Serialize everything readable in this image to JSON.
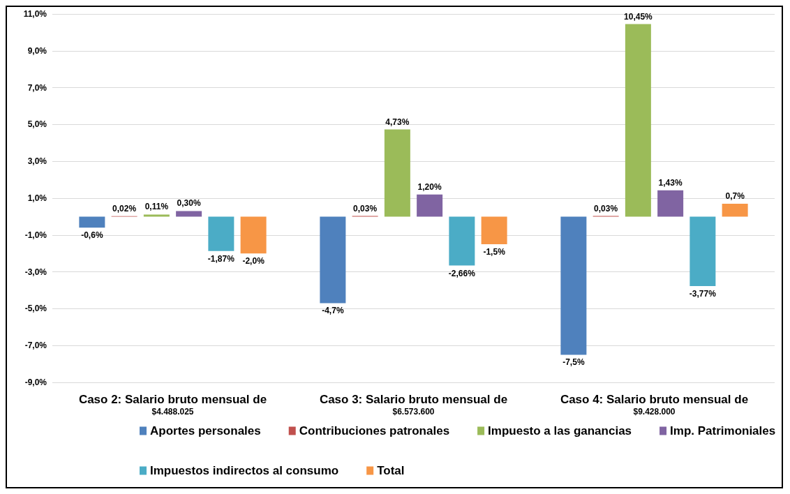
{
  "chart_data": {
    "type": "bar",
    "categories": [
      "Caso 2: Salario bruto mensual de\n$4.488.025",
      "Caso 3: Salario bruto mensual de\n$6.573.600",
      "Caso 4: Salario bruto mensual de\n$9.428.000"
    ],
    "series": [
      {
        "name": "Aportes personales",
        "color": "#4f81bd",
        "values": [
          -0.6,
          -4.7,
          -7.5
        ],
        "value_labels": [
          "-0,6%",
          "-4,7%",
          "-7,5%"
        ]
      },
      {
        "name": "Contribuciones patronales",
        "color": "#c0504d",
        "values": [
          0.02,
          0.03,
          0.03
        ],
        "value_labels": [
          "0,02%",
          "0,03%",
          "0,03%"
        ]
      },
      {
        "name": "Impuesto a las ganancias",
        "color": "#9bbb59",
        "values": [
          0.11,
          4.73,
          10.45
        ],
        "value_labels": [
          "0,11%",
          "4,73%",
          "10,45%"
        ]
      },
      {
        "name": "Imp. Patrimoniales",
        "color": "#8064a2",
        "values": [
          0.3,
          1.2,
          1.43
        ],
        "value_labels": [
          "0,30%",
          "1,20%",
          "1,43%"
        ]
      },
      {
        "name": "Impuestos indirectos al consumo",
        "color": "#4bacc6",
        "values": [
          -1.87,
          -2.66,
          -3.77
        ],
        "value_labels": [
          "-1,87%",
          "-2,66%",
          "-3,77%"
        ]
      },
      {
        "name": "Total",
        "color": "#f79646",
        "values": [
          -2.0,
          -1.5,
          0.7
        ],
        "value_labels": [
          "-2,0%",
          "-1,5%",
          "0,7%"
        ]
      }
    ],
    "ylim": [
      -9,
      11
    ],
    "yticks": [
      {
        "value": -9,
        "label": "-9,0%"
      },
      {
        "value": -7,
        "label": "-7,0%"
      },
      {
        "value": -5,
        "label": "-5,0%"
      },
      {
        "value": -3,
        "label": "-3,0%"
      },
      {
        "value": -1,
        "label": "-1,0%"
      },
      {
        "value": 1,
        "label": "1,0%"
      },
      {
        "value": 3,
        "label": "3,0%"
      },
      {
        "value": 5,
        "label": "5,0%"
      },
      {
        "value": 7,
        "label": "7,0%"
      },
      {
        "value": 9,
        "label": "9,0%"
      },
      {
        "value": 11,
        "label": "11,0%"
      }
    ],
    "grid": "y",
    "legend": "bottom"
  }
}
